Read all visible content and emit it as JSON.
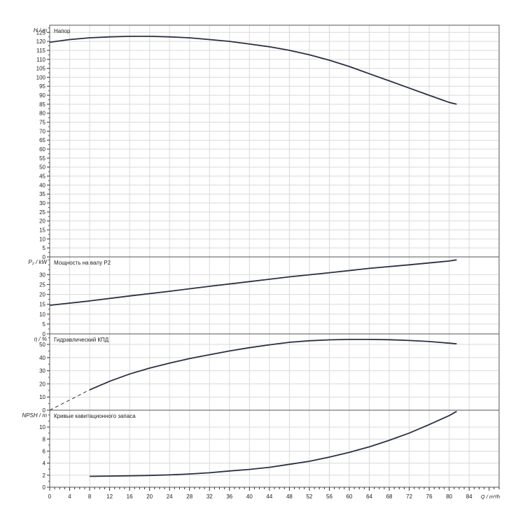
{
  "chart_data": {
    "type": "line",
    "xlabel": "Q / m³/h",
    "x_ticks": [
      "0",
      "4",
      "8",
      "12",
      "16",
      "20",
      "24",
      "28",
      "32",
      "36",
      "40",
      "44",
      "48",
      "52",
      "56",
      "60",
      "64",
      "68",
      "72",
      "76",
      "80",
      "84"
    ],
    "xlim": [
      0,
      90
    ],
    "panels": [
      {
        "id": "head",
        "title": "Напор",
        "ylabel": "H / m",
        "ylim": [
          0,
          129
        ],
        "y_ticks": [
          "0",
          "5",
          "10",
          "15",
          "20",
          "25",
          "30",
          "35",
          "40",
          "45",
          "50",
          "55",
          "60",
          "65",
          "70",
          "75",
          "80",
          "85",
          "90",
          "95",
          "100",
          "105",
          "110",
          "115",
          "120",
          "125"
        ],
        "series": [
          {
            "x": [
              0,
              4,
              8,
              12,
              16,
              20,
              24,
              28,
              32,
              36,
              40,
              44,
              48,
              52,
              56,
              60,
              64,
              68,
              72,
              76,
              80,
              81.5
            ],
            "y": [
              119.5,
              121,
              122,
              122.5,
              122.8,
              122.8,
              122.5,
              122,
              121,
              120,
              118.5,
              117,
              115,
              112.5,
              109.5,
              106,
              102,
              98,
              94,
              90,
              86,
              85
            ],
            "style": "solid"
          }
        ]
      },
      {
        "id": "power",
        "title": "Мощность на валу P2",
        "ylabel": "P₂ / kW",
        "ylim": [
          0,
          39
        ],
        "y_ticks": [
          "0",
          "5",
          "10",
          "15",
          "20",
          "25",
          "30"
        ],
        "series": [
          {
            "x": [
              0,
              8,
              16,
              24,
              32,
              40,
              48,
              56,
              64,
              72,
              80,
              81.5
            ],
            "y": [
              14.5,
              16.7,
              19.2,
              21.6,
              24.1,
              26.5,
              28.9,
              31,
              33.2,
              35,
              36.9,
              37.5
            ],
            "style": "solid"
          }
        ]
      },
      {
        "id": "efficiency",
        "title": "Гидравлический КПД",
        "ylabel": "η / %",
        "ylim": [
          0,
          58
        ],
        "y_ticks": [
          "0",
          "10",
          "20",
          "30",
          "40",
          "50"
        ],
        "series": [
          {
            "x": [
              0,
              8
            ],
            "y": [
              0,
              15.5
            ],
            "style": "dashed"
          },
          {
            "x": [
              8,
              12,
              16,
              20,
              24,
              28,
              32,
              36,
              40,
              44,
              48,
              52,
              56,
              60,
              64,
              68,
              72,
              76,
              80,
              81.5
            ],
            "y": [
              15.5,
              22,
              27.5,
              32,
              35.8,
              39.2,
              42.2,
              45,
              47.5,
              49.7,
              51.6,
              52.8,
              53.5,
              53.8,
              53.8,
              53.6,
              53,
              52.2,
              51,
              50.5
            ],
            "style": "solid"
          }
        ]
      },
      {
        "id": "npsh",
        "title": "Кривые кавитационного запаса",
        "ylabel": "NPSH / m",
        "ylim": [
          0,
          12.8
        ],
        "y_ticks": [
          "0",
          "2",
          "4",
          "6",
          "8",
          "10"
        ],
        "series": [
          {
            "x": [
              8,
              12,
              16,
              20,
              24,
              28,
              32,
              36,
              40,
              44,
              48,
              52,
              56,
              60,
              64,
              68,
              72,
              76,
              80,
              81.5
            ],
            "y": [
              1.8,
              1.85,
              1.9,
              1.95,
              2.05,
              2.2,
              2.4,
              2.7,
              2.95,
              3.3,
              3.8,
              4.3,
              5,
              5.8,
              6.7,
              7.8,
              9,
              10.4,
              11.9,
              12.6
            ],
            "style": "solid"
          }
        ]
      }
    ]
  }
}
